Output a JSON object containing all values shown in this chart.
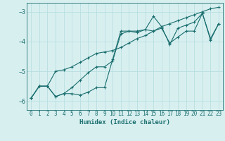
{
  "xlabel": "Humidex (Indice chaleur)",
  "ylabel": "",
  "background_color": "#d8eff0",
  "grid_color": "#b8dfe0",
  "line_color": "#1a6e6e",
  "xlim": [
    -0.5,
    23.5
  ],
  "ylim": [
    -6.3,
    -2.7
  ],
  "yticks": [
    -6,
    -5,
    -4,
    -3
  ],
  "xticks": [
    0,
    1,
    2,
    3,
    4,
    5,
    6,
    7,
    8,
    9,
    10,
    11,
    12,
    13,
    14,
    15,
    16,
    17,
    18,
    19,
    20,
    21,
    22,
    23
  ],
  "line1_x": [
    0,
    1,
    2,
    3,
    4,
    5,
    6,
    7,
    8,
    9,
    10,
    11,
    12,
    13,
    14,
    15,
    16,
    17,
    18,
    19,
    20,
    21,
    22,
    23
  ],
  "line1_y": [
    -5.9,
    -5.5,
    -5.5,
    -5.85,
    -5.75,
    -5.75,
    -5.8,
    -5.7,
    -5.55,
    -5.55,
    -4.6,
    -3.65,
    -3.65,
    -3.65,
    -3.6,
    -3.65,
    -3.55,
    -4.05,
    -3.85,
    -3.65,
    -3.65,
    -3.05,
    -3.9,
    -3.4
  ],
  "line2_x": [
    0,
    1,
    2,
    3,
    4,
    5,
    6,
    7,
    8,
    9,
    10,
    11,
    12,
    13,
    14,
    15,
    16,
    17,
    18,
    19,
    20,
    21,
    22,
    23
  ],
  "line2_y": [
    -5.9,
    -5.5,
    -5.5,
    -5.85,
    -5.75,
    -5.55,
    -5.3,
    -5.05,
    -4.85,
    -4.85,
    -4.65,
    -3.75,
    -3.65,
    -3.7,
    -3.6,
    -3.15,
    -3.5,
    -4.1,
    -3.55,
    -3.45,
    -3.35,
    -3.05,
    -3.95,
    -3.4
  ],
  "line3_x": [
    0,
    1,
    2,
    3,
    4,
    5,
    6,
    7,
    8,
    9,
    10,
    11,
    12,
    13,
    14,
    15,
    16,
    17,
    18,
    19,
    20,
    21,
    22,
    23
  ],
  "line3_y": [
    -5.9,
    -5.5,
    -5.5,
    -5.0,
    -4.95,
    -4.85,
    -4.7,
    -4.55,
    -4.4,
    -4.35,
    -4.3,
    -4.2,
    -4.05,
    -3.9,
    -3.8,
    -3.65,
    -3.5,
    -3.4,
    -3.3,
    -3.2,
    -3.1,
    -3.0,
    -2.9,
    -2.85
  ]
}
